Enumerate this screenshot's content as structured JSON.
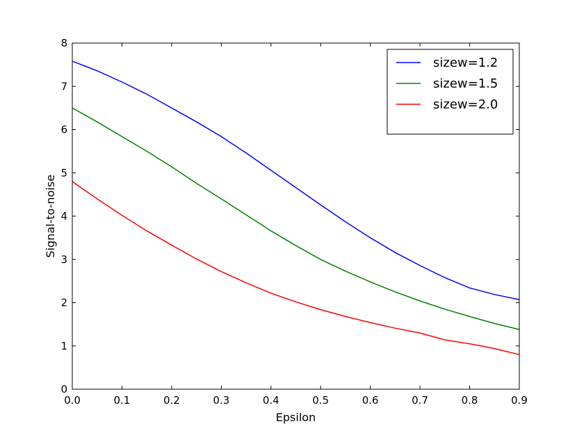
{
  "chart_data": {
    "type": "line",
    "title": "",
    "xlabel": "Epsilon",
    "ylabel": "Signal-to-noise",
    "xlim": [
      0.0,
      0.9
    ],
    "ylim": [
      0,
      8
    ],
    "xticks": [
      "0.0",
      "0.1",
      "0.2",
      "0.3",
      "0.4",
      "0.5",
      "0.6",
      "0.7",
      "0.8",
      "0.9"
    ],
    "yticks": [
      "0",
      "1",
      "2",
      "3",
      "4",
      "5",
      "6",
      "7",
      "8"
    ],
    "grid": false,
    "legend_position": "top-right",
    "x": [
      0.0,
      0.05,
      0.1,
      0.15,
      0.2,
      0.25,
      0.3,
      0.35,
      0.4,
      0.45,
      0.5,
      0.55,
      0.6,
      0.65,
      0.7,
      0.75,
      0.8,
      0.85,
      0.9
    ],
    "series": [
      {
        "name": "sizew=1.2",
        "color": "#0000ff",
        "values": [
          7.58,
          7.36,
          7.1,
          6.82,
          6.5,
          6.18,
          5.84,
          5.46,
          5.06,
          4.66,
          4.26,
          3.87,
          3.5,
          3.16,
          2.86,
          2.58,
          2.34,
          2.19,
          2.07
        ]
      },
      {
        "name": "sizew=1.5",
        "color": "#008000",
        "values": [
          6.5,
          6.18,
          5.84,
          5.5,
          5.14,
          4.76,
          4.4,
          4.03,
          3.66,
          3.32,
          3.0,
          2.73,
          2.48,
          2.25,
          2.04,
          1.85,
          1.68,
          1.52,
          1.38
        ]
      },
      {
        "name": "sizew=2.0",
        "color": "#ff0000",
        "values": [
          4.8,
          4.4,
          4.02,
          3.66,
          3.33,
          3.01,
          2.72,
          2.46,
          2.22,
          2.02,
          1.84,
          1.68,
          1.54,
          1.41,
          1.3,
          1.14,
          1.05,
          0.94,
          0.8
        ]
      }
    ]
  }
}
